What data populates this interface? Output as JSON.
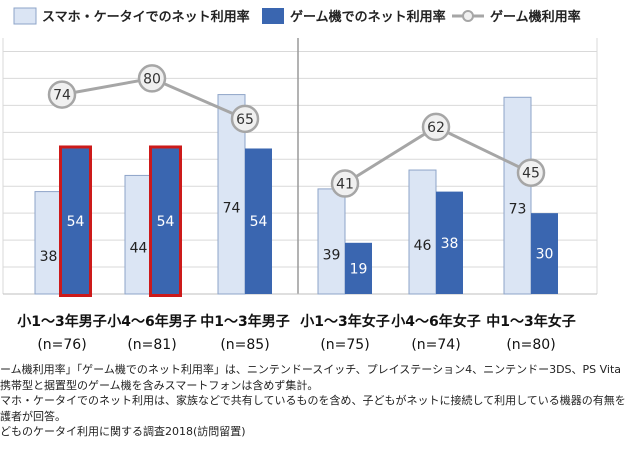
{
  "legend": {
    "series_a": "スマホ・ケータイでのネット利用率",
    "series_b": "ゲーム機でのネット利用率",
    "series_c": "ゲーム機利用率"
  },
  "colors": {
    "light_bar": "#dbe5f4",
    "light_bar_edge": "#8ea4c8",
    "dark_bar": "#3a66b0",
    "highlight_border": "#cc1a1a",
    "line": "#a6a6a6",
    "marker_fill": "#f0f0f0",
    "marker_edge": "#a6a6a6",
    "grid": "#d9d9d9"
  },
  "chart_data": {
    "type": "bar",
    "categories": [
      "小1～3年男子",
      "小4～6年男子",
      "中1～3年男子",
      "小1～3年女子",
      "小4～6年女子",
      "中1～3年女子"
    ],
    "n_labels": [
      "(n=76)",
      "(n=81)",
      "(n=85)",
      "(n=75)",
      "(n=74)",
      "(n=80)"
    ],
    "series": [
      {
        "name": "スマホ・ケータイでのネット利用率",
        "kind": "bar",
        "values": [
          38,
          44,
          74,
          39,
          46,
          73
        ]
      },
      {
        "name": "ゲーム機でのネット利用率",
        "kind": "bar",
        "values": [
          54,
          54,
          54,
          19,
          38,
          30
        ]
      },
      {
        "name": "ゲーム機利用率",
        "kind": "line",
        "values": [
          74,
          80,
          65,
          41,
          62,
          45
        ]
      }
    ],
    "highlighted": [
      0,
      1
    ],
    "groups": [
      [
        0,
        1,
        2
      ],
      [
        3,
        4,
        5
      ]
    ],
    "ylim": [
      0,
      95
    ],
    "grid": true,
    "legend_position": "top"
  },
  "notes": [
    "ーム機利用率」「ゲーム機でのネット利用率」は、ニンテンドースイッチ、プレイステーション4、ニンテンドー3DS、PS Vita",
    "携帯型と据置型のゲーム機を含みスマートフォンは含めず集計。",
    "マホ・ケータイでのネット利用は、家族などで共有しているものを含め、子どもがネットに接続して利用している機器の有無を",
    "護者が回答。",
    "どものケータイ利用に関する調査2018(訪問留置)"
  ]
}
